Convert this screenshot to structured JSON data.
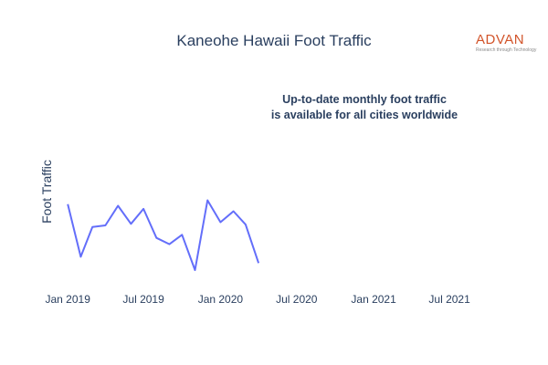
{
  "logo": {
    "name": "ADVAN",
    "tagline": "Research through Technology",
    "color": "#d2542a"
  },
  "chart_data": {
    "type": "line",
    "title": "Kaneohe Hawaii Foot Traffic",
    "ylabel": "Foot Traffic",
    "xlabel": "",
    "annotation": [
      "Up-to-date monthly foot traffic",
      "is available for all cities worldwide"
    ],
    "x_ticks": [
      "Jan 2019",
      "Jul 2019",
      "Jan 2020",
      "Jul 2020",
      "Jan 2021",
      "Jul 2021"
    ],
    "xlim": [
      "2018-12-01",
      "2021-08-31"
    ],
    "y_tick_labels_shown": false,
    "grid": false,
    "line_color": "#636efa",
    "series": [
      {
        "x": [
          "2019-01",
          "2019-02",
          "2019-03",
          "2019-04",
          "2019-05",
          "2019-06",
          "2019-07",
          "2019-08",
          "2019-09",
          "2019-10",
          "2019-11",
          "2019-12",
          "2020-01",
          "2020-02",
          "2020-03",
          "2020-04"
        ],
        "values": [
          0.84,
          0.17,
          0.55,
          0.57,
          0.82,
          0.59,
          0.78,
          0.41,
          0.33,
          0.45,
          0.0,
          0.89,
          0.61,
          0.75,
          0.58,
          0.09
        ]
      }
    ]
  }
}
